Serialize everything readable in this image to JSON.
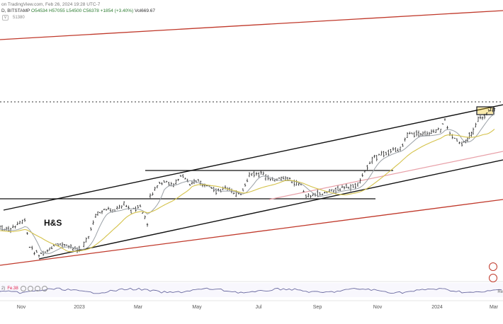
{
  "header": {
    "source": "on TradingView.com, Feb 26, 2024 19:28 UTC-7",
    "symbol": "D, BITSTAMP",
    "ohlc": "O54534 H57055 L54500 C56378 +1854 (+3.40%)",
    "volume": "Vol669.67"
  },
  "subheader": {
    "value": "51380"
  },
  "oscillator": {
    "label": "2)",
    "value": "Fe.38",
    "right_label": "Re"
  },
  "annotation": {
    "pattern_label": "H&S"
  },
  "colors": {
    "price_bars": "#222222",
    "ma_fast": "#9aa0a6",
    "ma_slow": "#d4c24a",
    "channel_lines": "#111111",
    "red_lines": "#c0392b",
    "pink_line": "#e8a0a8",
    "highlight_box": "#f1c40f",
    "osc_line": "#6a6aa0"
  },
  "chart_data": {
    "type": "ohlc",
    "title": "",
    "x_tick_labels": [
      "Nov",
      "2023",
      "Mar",
      "May",
      "Jul",
      "Sep",
      "Nov",
      "2024",
      "Mar"
    ],
    "approx_close_path": [
      {
        "t": "Oct 2022",
        "level": "low"
      },
      {
        "t": "Nov 2022",
        "level": "bottom (H&S)"
      },
      {
        "t": "Jan 2023",
        "level": "breakout"
      },
      {
        "t": "Apr 2023",
        "level": "range high"
      },
      {
        "t": "Jul 2023",
        "level": "range high"
      },
      {
        "t": "Sep 2023",
        "level": "pullback"
      },
      {
        "t": "Dec 2023",
        "level": "new high"
      },
      {
        "t": "Feb 2024",
        "level": "channel top"
      }
    ],
    "horizontal_levels": [
      "upper range",
      "lower range",
      "dotted high"
    ],
    "trendlines": [
      "ascending channel top",
      "ascending channel bottom",
      "long-term support (red)",
      "long-term resistance (red)",
      "moving average (pink)"
    ],
    "grid": false,
    "indicators": [
      "fast moving average",
      "slow moving average",
      "oscillator panel"
    ]
  }
}
